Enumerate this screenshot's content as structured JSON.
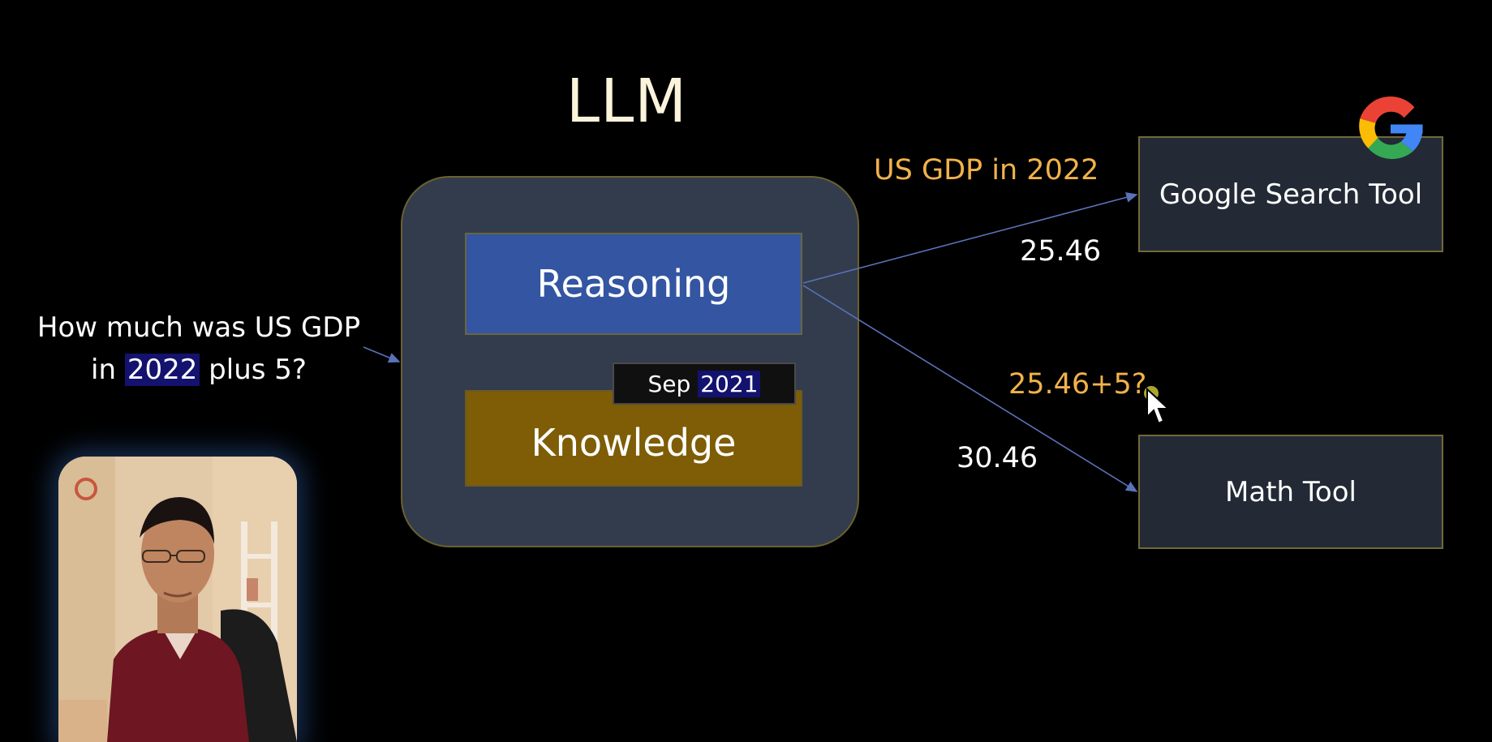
{
  "diagram": {
    "title": "LLM",
    "question_line1": "How much was US GDP",
    "question_line2_pre": "in ",
    "question_line2_hl": "2022",
    "question_line2_post": " plus 5?",
    "reasoning_label": "Reasoning",
    "knowledge_label": "Knowledge",
    "cutoff_month": "Sep ",
    "cutoff_year": "2021",
    "google_tool_label": "Google Search Tool",
    "math_tool_label": "Math Tool",
    "search_query": "US GDP in 2022",
    "search_result": "25.46",
    "math_query": "25.46+5?",
    "math_result": "30.46"
  },
  "colors": {
    "background": "#000000",
    "llm_box": "#323c4c",
    "reasoning": "#3355a2",
    "knowledge": "#7e5d06",
    "tool_box": "#232a36",
    "query_text": "#f1b24a",
    "highlight": "#13126e",
    "arrow": "#5a72b8"
  },
  "icons": {
    "google_logo": "google-g-icon",
    "cursor": "mouse-pointer-icon"
  }
}
